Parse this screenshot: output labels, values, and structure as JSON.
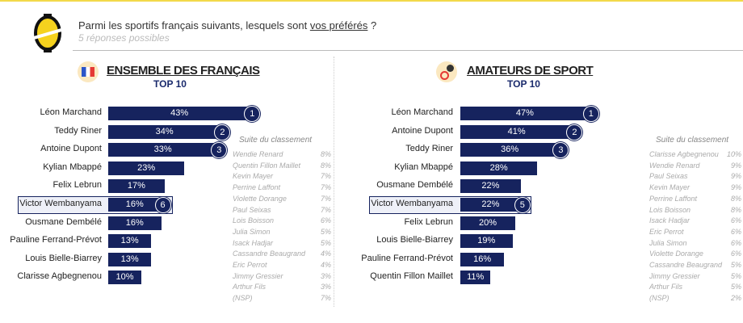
{
  "question": {
    "text": "Parmi les sportifs français suivants, lesquels sont ",
    "emph": "vos préférés",
    "end": " ?",
    "sub": "5 réponses possibles"
  },
  "chart_data": [
    {
      "type": "bar",
      "title": "ENSEMBLE DES FRANÇAIS",
      "subtitle": "TOP 10",
      "unit": "%",
      "categories": [
        "Léon Marchand",
        "Teddy Riner",
        "Antoine Dupont",
        "Kylian Mbappé",
        "Felix Lebrun",
        "Victor Wembanyama",
        "Ousmane Dembélé",
        "Pauline Ferrand-Prévot",
        "Louis Bielle-Biarrey",
        "Clarisse Agbegnenou"
      ],
      "values": [
        43,
        34,
        33,
        23,
        17,
        16,
        16,
        13,
        13,
        10
      ],
      "ranks": [
        "1",
        "2",
        "3",
        "",
        "",
        "6",
        "",
        "",
        "",
        ""
      ],
      "highlight_index": 5,
      "suite_title": "Suite du classement",
      "suite": [
        [
          "Wendie Renard",
          "8%"
        ],
        [
          "Quentin Fillon Maillet",
          "8%"
        ],
        [
          "Kevin Mayer",
          "7%"
        ],
        [
          "Perrine Laffont",
          "7%"
        ],
        [
          "Violette Dorange",
          "7%"
        ],
        [
          "Paul Seixas",
          "7%"
        ],
        [
          "Lois Boisson",
          "6%"
        ],
        [
          "Julia Simon",
          "5%"
        ],
        [
          "Isack Hadjar",
          "5%"
        ],
        [
          "Cassandre Beaugrand",
          "4%"
        ],
        [
          "Eric Perrot",
          "4%"
        ],
        [
          "Jimmy Gressier",
          "3%"
        ],
        [
          "Arthur Fils",
          "3%"
        ],
        [
          "(NSP)",
          "7%"
        ]
      ]
    },
    {
      "type": "bar",
      "title": "AMATEURS DE SPORT",
      "subtitle": "TOP 10",
      "unit": "%",
      "categories": [
        "Léon Marchand",
        "Antoine Dupont",
        "Teddy Riner",
        "Kylian Mbappé",
        "Ousmane Dembélé",
        "Victor Wembanyama",
        "Felix Lebrun",
        "Louis Bielle-Biarrey",
        "Pauline Ferrand-Prévot",
        "Quentin Fillon Maillet"
      ],
      "values": [
        47,
        41,
        36,
        28,
        22,
        22,
        20,
        19,
        16,
        11
      ],
      "ranks": [
        "1",
        "2",
        "3",
        "",
        "",
        "5",
        "",
        "",
        "",
        ""
      ],
      "highlight_index": 5,
      "suite_title": "Suite du classement",
      "suite": [
        [
          "Clarisse Agbegnenou",
          "10%"
        ],
        [
          "Wendie Renard",
          "9%"
        ],
        [
          "Paul Seixas",
          "9%"
        ],
        [
          "Kevin Mayer",
          "9%"
        ],
        [
          "Perrine Laffont",
          "8%"
        ],
        [
          "Lois Boisson",
          "8%"
        ],
        [
          "Isack Hadjar",
          "6%"
        ],
        [
          "Eric Perrot",
          "6%"
        ],
        [
          "Julia Simon",
          "6%"
        ],
        [
          "Violette Dorange",
          "6%"
        ],
        [
          "Cassandre Beaugrand",
          "5%"
        ],
        [
          "Jimmy Gressier",
          "5%"
        ],
        [
          "Arthur Fils",
          "5%"
        ],
        [
          "(NSP)",
          "2%"
        ]
      ]
    }
  ],
  "colors": {
    "bar": "#16235e",
    "accent": "#f3d94a"
  }
}
